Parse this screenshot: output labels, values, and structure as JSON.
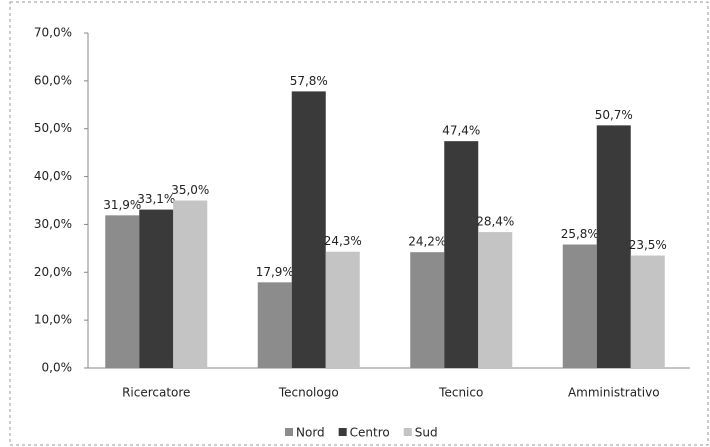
{
  "chart_data": {
    "type": "bar",
    "categories": [
      "Ricercatore",
      "Tecnologo",
      "Tecnico",
      "Amministrativo"
    ],
    "series": [
      {
        "name": "Nord",
        "color": "#8c8c8c",
        "values": [
          31.9,
          17.9,
          24.2,
          25.8
        ],
        "value_labels": [
          "31,9%",
          "17,9%",
          "24,2%",
          "25,8%"
        ]
      },
      {
        "name": "Centro",
        "color": "#3a3a3a",
        "values": [
          33.1,
          57.8,
          47.4,
          50.7
        ],
        "value_labels": [
          "33,1%",
          "57,8%",
          "47,4%",
          "50,7%"
        ]
      },
      {
        "name": "Sud",
        "color": "#c4c4c4",
        "values": [
          35.0,
          24.3,
          28.4,
          23.5
        ],
        "value_labels": [
          "35,0%",
          "24,3%",
          "28,4%",
          "23,5%"
        ]
      }
    ],
    "ylim": [
      0,
      70
    ],
    "yticks": [
      {
        "value": 0,
        "label": "0,0%"
      },
      {
        "value": 10,
        "label": "10,0%"
      },
      {
        "value": 20,
        "label": "20,0%"
      },
      {
        "value": 30,
        "label": "30,0%"
      },
      {
        "value": 40,
        "label": "40,0%"
      },
      {
        "value": 50,
        "label": "50,0%"
      },
      {
        "value": 60,
        "label": "60,0%"
      },
      {
        "value": 70,
        "label": "70,0%"
      }
    ],
    "grid": false,
    "legend": "bottom"
  }
}
